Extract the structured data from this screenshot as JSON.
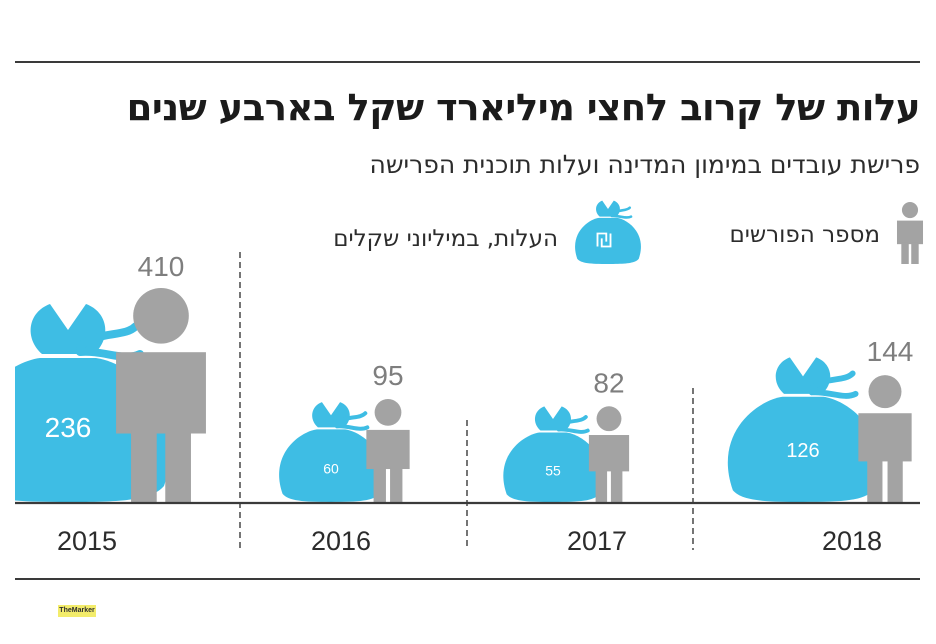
{
  "title": "עלות של קרוב לחצי מיליארד שקל בארבע שנים",
  "subtitle": "פרישת עובדים במימון המדינה ועלות תוכנית הפרישה",
  "legend": {
    "people_label": "מספר הפורשים",
    "cost_label": "העלות, במיליוני שקלים",
    "people_icon": "person-icon",
    "cost_icon": "money-bag-icon"
  },
  "logo_text": "TheMarker",
  "colors": {
    "cost": "#3ebde4",
    "people": "#a3a3a3",
    "people_label": "#7e7e7e",
    "axis": "#3a3a3a"
  },
  "chart_data": {
    "type": "bar",
    "categories": [
      "2015",
      "2016",
      "2017",
      "2018"
    ],
    "series": [
      {
        "name": "העלות, במיליוני שקלים",
        "values": [
          236,
          60,
          55,
          126
        ]
      },
      {
        "name": "מספר הפורשים",
        "values": [
          410,
          95,
          82,
          144
        ]
      }
    ],
    "xlabel": "",
    "ylabel": "",
    "grid": false,
    "legend_position": "top"
  }
}
